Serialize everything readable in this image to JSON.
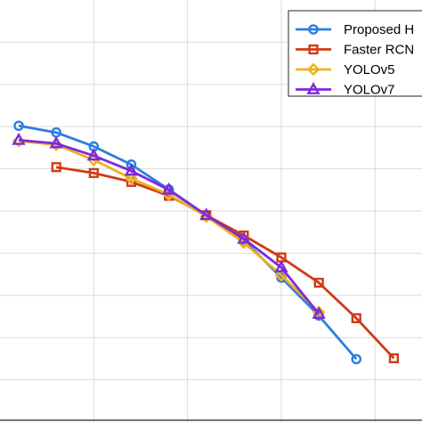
{
  "chart_data": {
    "type": "line",
    "grid": true,
    "legend_position": "top-right",
    "xlim": [
      0,
      1
    ],
    "ylim": [
      0,
      1
    ],
    "xgrid": [
      0.2222,
      0.4444,
      0.6667,
      0.8889
    ],
    "ygrid": [
      0.1,
      0.2,
      0.3,
      0.4,
      0.5,
      0.6,
      0.7,
      0.8,
      0.9
    ],
    "series": [
      {
        "name": "Proposed H",
        "color": "#2C7FE0",
        "marker": "circle",
        "x": [
          0.0444,
          0.1333,
          0.2222,
          0.3111,
          0.4,
          0.4889,
          0.5778,
          0.6667,
          0.7556,
          0.8444
        ],
        "y": [
          0.702,
          0.686,
          0.653,
          0.61,
          0.551,
          0.49,
          0.431,
          0.342,
          0.252,
          0.149
        ]
      },
      {
        "name": "Faster RCN",
        "color": "#D13B15",
        "marker": "square",
        "x": [
          0.1333,
          0.2222,
          0.3111,
          0.4,
          0.4889,
          0.5778,
          0.6667,
          0.7556,
          0.8444,
          0.9333
        ],
        "y": [
          0.604,
          0.59,
          0.569,
          0.536,
          0.49,
          0.442,
          0.39,
          0.33,
          0.246,
          0.151
        ]
      },
      {
        "name": "YOLOv5",
        "color": "#EDB120",
        "marker": "diamond",
        "x": [
          0.0444,
          0.1333,
          0.2222,
          0.3111,
          0.4,
          0.4889,
          0.5778,
          0.6667,
          0.7556
        ],
        "y": [
          0.666,
          0.657,
          0.621,
          0.577,
          0.539,
          0.487,
          0.425,
          0.348,
          0.26
        ]
      },
      {
        "name": "YOLOv7",
        "color": "#7E2AD9",
        "marker": "triangle",
        "x": [
          0.0444,
          0.1333,
          0.2222,
          0.3111,
          0.4,
          0.4889,
          0.5778,
          0.6667,
          0.7556
        ],
        "y": [
          0.668,
          0.66,
          0.631,
          0.595,
          0.55,
          0.49,
          0.434,
          0.366,
          0.256
        ]
      }
    ]
  }
}
